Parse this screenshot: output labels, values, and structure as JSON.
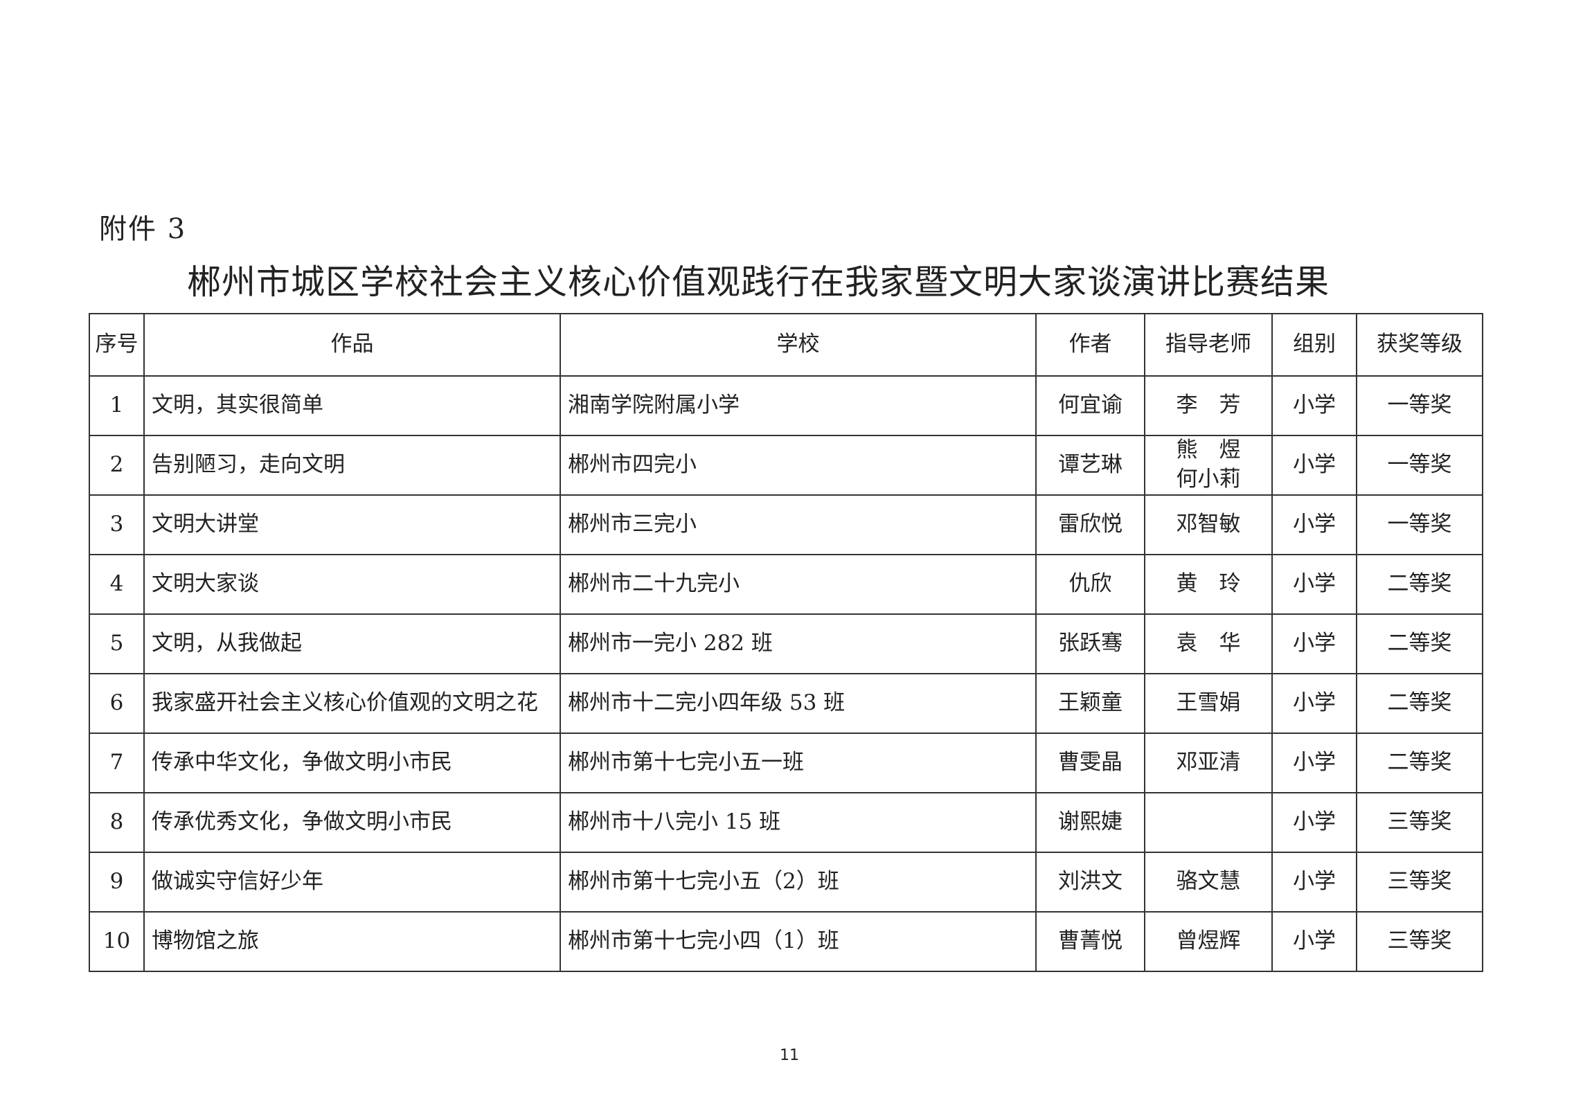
{
  "attachment_label": "附件 3",
  "title": "郴州市城区学校社会主义核心价值观践行在我家暨文明大家谈演讲比赛结果",
  "table": {
    "headers": [
      "序号",
      "作品",
      "学校",
      "作者",
      "指导老师",
      "组别",
      "获奖等级"
    ],
    "rows": [
      {
        "no": "1",
        "work": "文明，其实很简单",
        "school": "湘南学院附属小学",
        "author": "何宜谕",
        "teacher": "李　芳",
        "group": "小学",
        "award": "一等奖"
      },
      {
        "no": "2",
        "work": "告别陋习，走向文明",
        "school": "郴州市四完小",
        "author": "谭艺琳",
        "teacher": "熊　煜\n何小莉",
        "group": "小学",
        "award": "一等奖"
      },
      {
        "no": "3",
        "work": "文明大讲堂",
        "school": "郴州市三完小",
        "author": "雷欣悦",
        "teacher": "邓智敏",
        "group": "小学",
        "award": "一等奖"
      },
      {
        "no": "4",
        "work": "文明大家谈",
        "school": "郴州市二十九完小",
        "author": "仇欣",
        "teacher": "黄　玲",
        "group": "小学",
        "award": "二等奖"
      },
      {
        "no": "5",
        "work": "文明，从我做起",
        "school": "郴州市一完小 282 班",
        "author": "张跃骞",
        "teacher": "袁　华",
        "group": "小学",
        "award": "二等奖"
      },
      {
        "no": "6",
        "work": "我家盛开社会主义核心价值观的文明之花",
        "school": "郴州市十二完小四年级 53 班",
        "author": "王颖童",
        "teacher": "王雪娟",
        "group": "小学",
        "award": "二等奖"
      },
      {
        "no": "7",
        "work": "传承中华文化，争做文明小市民",
        "school": "郴州市第十七完小五一班",
        "author": "曹雯晶",
        "teacher": "邓亚清",
        "group": "小学",
        "award": "二等奖"
      },
      {
        "no": "8",
        "work": "传承优秀文化，争做文明小市民",
        "school": "郴州市十八完小 15 班",
        "author": "谢熙婕",
        "teacher": "",
        "group": "小学",
        "award": "三等奖"
      },
      {
        "no": "9",
        "work": "做诚实守信好少年",
        "school": "郴州市第十七完小五（2）班",
        "author": "刘洪文",
        "teacher": "骆文慧",
        "group": "小学",
        "award": "三等奖"
      },
      {
        "no": "10",
        "work": "博物馆之旅",
        "school": "郴州市第十七完小四（1）班",
        "author": "曹菁悦",
        "teacher": "曾煜辉",
        "group": "小学",
        "award": "三等奖"
      }
    ]
  },
  "page_number": "11"
}
